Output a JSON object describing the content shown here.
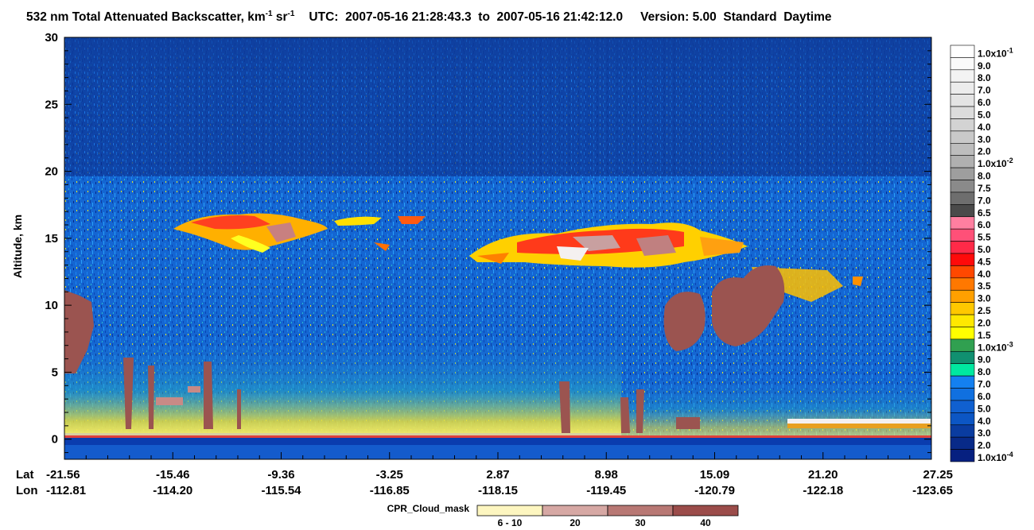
{
  "title": {
    "prefix": "532 nm Total Attenuated Backscatter, km",
    "sup1": "-1",
    "mid": " sr",
    "sup2": "-1",
    "utc_label": "UTC:",
    "start_time": "2007-05-16 21:28:43.3",
    "to_word": "to",
    "end_time": "2007-05-16 21:42:12.0",
    "version": "Version: 5.00",
    "product": "Standard",
    "period": "Daytime"
  },
  "colors": {
    "background_data": "#1560c8",
    "upper_sky": "#0f3c9a",
    "cloud_mask": "#9b5450",
    "surface_band": "#d8cfa0",
    "accent_yellow": "#ffe800",
    "accent_red": "#e83020"
  },
  "chart_data": {
    "type": "heatmap",
    "ylabel": "Altitude, km",
    "ylim": [
      -1.5,
      30
    ],
    "yticks": [
      "30",
      "25",
      "20",
      "15",
      "10",
      "5",
      "0"
    ],
    "x_row_labels": [
      "Lat",
      "Lon"
    ],
    "x_ticks": [
      {
        "lat": "-21.56",
        "lon": "-112.81"
      },
      {
        "lat": "-15.46",
        "lon": "-114.20"
      },
      {
        "lat": "-9.36",
        "lon": "-115.54"
      },
      {
        "lat": "-3.25",
        "lon": "-116.85"
      },
      {
        "lat": "2.87",
        "lon": "-118.15"
      },
      {
        "lat": "8.98",
        "lon": "-119.45"
      },
      {
        "lat": "15.09",
        "lon": "-120.79"
      },
      {
        "lat": "21.20",
        "lon": "-122.18"
      },
      {
        "lat": "27.25",
        "lon": "-123.65"
      }
    ],
    "colorbar": {
      "levels": [
        {
          "label": "1.0x10",
          "sup": "-1",
          "color": "#ffffff"
        },
        {
          "label": "9.0",
          "color": "#fafafa"
        },
        {
          "label": "8.0",
          "color": "#f3f3f3"
        },
        {
          "label": "7.0",
          "color": "#ececec"
        },
        {
          "label": "6.0",
          "color": "#e4e4e4"
        },
        {
          "label": "5.0",
          "color": "#dcdcdc"
        },
        {
          "label": "4.0",
          "color": "#d3d3d3"
        },
        {
          "label": "3.0",
          "color": "#c9c9c9"
        },
        {
          "label": "2.0",
          "color": "#bdbdbd"
        },
        {
          "label": "1.0x10",
          "sup": "-2",
          "color": "#b0b0b0"
        },
        {
          "label": "8.0",
          "color": "#9e9e9e"
        },
        {
          "label": "7.5",
          "color": "#8a8a8a"
        },
        {
          "label": "7.0",
          "color": "#6e6e6e"
        },
        {
          "label": "6.5",
          "color": "#4a4a4a"
        },
        {
          "label": "6.0",
          "color": "#ff7fa0"
        },
        {
          "label": "5.5",
          "color": "#ff5078"
        },
        {
          "label": "5.0",
          "color": "#ff2a48"
        },
        {
          "label": "4.5",
          "color": "#ff0a0a"
        },
        {
          "label": "4.0",
          "color": "#ff4800"
        },
        {
          "label": "3.5",
          "color": "#ff7800"
        },
        {
          "label": "3.0",
          "color": "#ffa000"
        },
        {
          "label": "2.5",
          "color": "#ffc800"
        },
        {
          "label": "2.0",
          "color": "#ffe800"
        },
        {
          "label": "1.5",
          "color": "#ffff00"
        },
        {
          "label": "1.0x10",
          "sup": "-3",
          "color": "#30a050"
        },
        {
          "label": "9.0",
          "color": "#109070"
        },
        {
          "label": "8.0",
          "color": "#00e8a0"
        },
        {
          "label": "7.0",
          "color": "#1480f0"
        },
        {
          "label": "6.0",
          "color": "#1070e0"
        },
        {
          "label": "5.0",
          "color": "#1060d0"
        },
        {
          "label": "4.0",
          "color": "#0c56c4"
        },
        {
          "label": "3.0",
          "color": "#0a3ca0"
        },
        {
          "label": "2.0",
          "color": "#082a88"
        },
        {
          "label": "1.0x10",
          "sup": "-4",
          "color": "#062080"
        }
      ]
    },
    "cloud_mask_legend": {
      "title": "CPR_Cloud_mask",
      "items": [
        {
          "label": "6 - 10",
          "color": "#fdf6c0"
        },
        {
          "label": "20",
          "color": "#d6a8a4"
        },
        {
          "label": "30",
          "color": "#b87874"
        },
        {
          "label": "40",
          "color": "#9b4c4a"
        }
      ]
    },
    "features": {
      "high_cloud_west": {
        "lat_start": "-17.5",
        "lat_end": "-2.0",
        "alt_km": [
          14.0,
          16.8
        ]
      },
      "high_cloud_east": {
        "lat_start": "3.0",
        "lat_end": "19.5",
        "alt_km": [
          13.0,
          16.2
        ]
      },
      "cpr_cloud_mask_mid": {
        "lat_start": "12.0",
        "lat_end": "19.5",
        "alt_km": [
          7.0,
          13.0
        ]
      },
      "cpr_cloud_mask_west_edge": {
        "lat_start": "-21.56",
        "lat_end": "-21.0",
        "alt_km": [
          4.5,
          10.5
        ]
      },
      "surface_return_km": 0.0
    }
  }
}
